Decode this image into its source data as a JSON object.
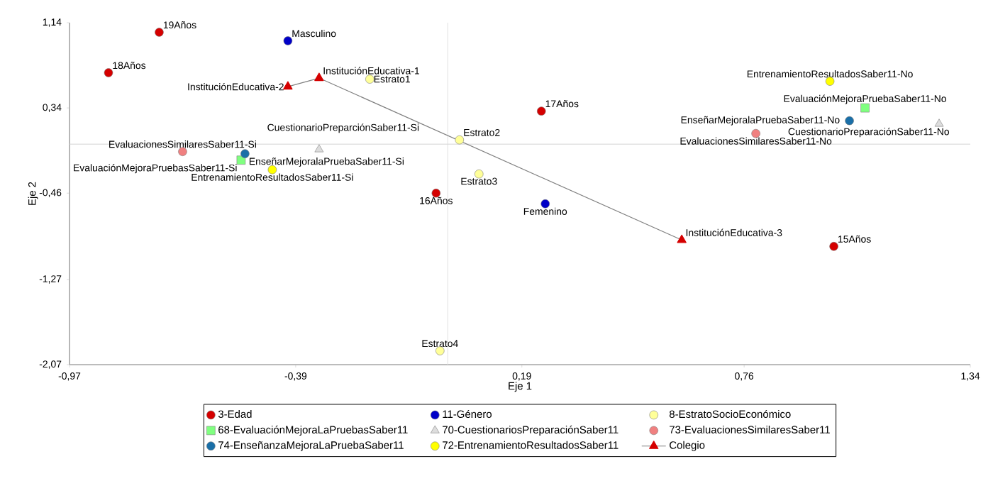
{
  "chart_data": {
    "type": "scatter",
    "xlabel": "Eje 1",
    "ylabel": "Eje 2",
    "xlim": [
      -0.97,
      1.34
    ],
    "ylim": [
      -2.07,
      1.14
    ],
    "xticks": [
      {
        "value": -0.97,
        "label": "-0,97"
      },
      {
        "value": -0.39,
        "label": "-0,39"
      },
      {
        "value": 0.19,
        "label": "0,19"
      },
      {
        "value": 0.76,
        "label": "0,76"
      },
      {
        "value": 1.34,
        "label": "1,34"
      }
    ],
    "yticks": [
      {
        "value": -2.07,
        "label": "-2,07"
      },
      {
        "value": -1.27,
        "label": "-1,27"
      },
      {
        "value": -0.46,
        "label": "-0,46"
      },
      {
        "value": 0.34,
        "label": "0,34"
      },
      {
        "value": 1.14,
        "label": "1,14"
      }
    ],
    "ref_lines": [
      {
        "axis": "x",
        "value": 0,
        "color": "#e0e0e0"
      },
      {
        "axis": "y",
        "value": 0,
        "color": "#d4d4d4"
      }
    ],
    "legend": "bottom",
    "grid": false,
    "series": [
      {
        "name": "3-Edad",
        "marker": "circle",
        "color": "#d50000",
        "x": [
          -0.74,
          -0.87,
          0.24,
          -0.03,
          0.99
        ],
        "values": [
          1.05,
          0.67,
          0.31,
          -0.46,
          -0.96
        ]
      },
      {
        "name": "11-Género",
        "marker": "circle",
        "color": "#0000c8",
        "x": [
          -0.41,
          0.25
        ],
        "values": [
          0.97,
          -0.56
        ]
      },
      {
        "name": "8-EstratoSocioEconómico",
        "marker": "circle",
        "color": "#ffff99",
        "x": [
          -0.2,
          0.03,
          0.08,
          -0.02
        ],
        "values": [
          0.61,
          0.04,
          -0.28,
          -1.94
        ]
      },
      {
        "name": "68-EvaluaciónMejoraLaPruebasSaber11",
        "marker": "square",
        "color": "#80ff80",
        "x": [
          -0.53,
          1.07
        ],
        "values": [
          -0.15,
          0.34
        ]
      },
      {
        "name": "70-CuestionariosPreparaciónSaber11",
        "marker": "triangle",
        "color": "#dddddd",
        "x": [
          -0.33,
          1.26
        ],
        "values": [
          -0.05,
          0.19
        ]
      },
      {
        "name": "73-EvaluacionesSimilaresSaber11",
        "marker": "circle",
        "color": "#f08080",
        "x": [
          -0.68,
          0.79
        ],
        "values": [
          -0.07,
          0.1
        ]
      },
      {
        "name": "74-EnseñanzaMejoraLaPruebaSaber11",
        "marker": "circle",
        "color": "#1a6fa8",
        "x": [
          -0.52,
          1.03
        ],
        "values": [
          -0.09,
          0.22
        ]
      },
      {
        "name": "72-EntrenamientoResultadosSaber11",
        "marker": "circle",
        "color": "#ffff00",
        "x": [
          -0.45,
          0.98
        ],
        "values": [
          -0.24,
          0.59
        ]
      },
      {
        "name": "Colegio",
        "type": "line",
        "marker": "triangle",
        "color": "#d50000",
        "x": [
          -0.41,
          -0.33,
          0.6
        ],
        "values": [
          0.54,
          0.62,
          -0.9
        ]
      }
    ],
    "annotations": [
      {
        "text": "19Años",
        "x": -0.74,
        "y": 1.05
      },
      {
        "text": "18Años",
        "x": -0.87,
        "y": 0.67
      },
      {
        "text": "17Años",
        "x": 0.24,
        "y": 0.31
      },
      {
        "text": "16Años",
        "x": -0.03,
        "y": -0.46
      },
      {
        "text": "15Años",
        "x": 0.99,
        "y": -0.96
      },
      {
        "text": "Masculino",
        "x": -0.41,
        "y": 0.97
      },
      {
        "text": "Femenino",
        "x": 0.25,
        "y": -0.56
      },
      {
        "text": "Estrato1",
        "x": -0.2,
        "y": 0.61
      },
      {
        "text": "Estrato2",
        "x": 0.03,
        "y": 0.04
      },
      {
        "text": "Estrato3",
        "x": 0.08,
        "y": -0.28
      },
      {
        "text": "Estrato4",
        "x": -0.02,
        "y": -1.94
      },
      {
        "text": "EvaluaciónMejoraPruebasSaber11-Si",
        "x": -0.53,
        "y": -0.15
      },
      {
        "text": "EvaluaciónMejoraPruebaSaber11-No",
        "x": 1.07,
        "y": 0.34
      },
      {
        "text": "CuestionarioPreparciónSaber11-Si",
        "x": -0.33,
        "y": -0.05
      },
      {
        "text": "CuestionarioPreparaciónSaber11-No",
        "x": 1.26,
        "y": 0.19
      },
      {
        "text": "EvaluacionesSimilaresSaber11-Si",
        "x": -0.68,
        "y": -0.07
      },
      {
        "text": "EvaluacionesSimilaresSaber11-No",
        "x": 0.79,
        "y": 0.1
      },
      {
        "text": "EnseñarMejoralaPruebaSaber11-Si",
        "x": -0.52,
        "y": -0.09
      },
      {
        "text": "EnseñarMejoralaPruebaSaber11-No",
        "x": 1.03,
        "y": 0.22
      },
      {
        "text": "EntrenamientoResultadosSaber11-Si",
        "x": -0.45,
        "y": -0.24
      },
      {
        "text": "EntrenamientoResultadosSaber11-No",
        "x": 0.98,
        "y": 0.59
      },
      {
        "text": "InstituciónEducativa-1",
        "x": -0.33,
        "y": 0.62
      },
      {
        "text": "InstituciónEducativa-2",
        "x": -0.41,
        "y": 0.54
      },
      {
        "text": "InstituciónEducativa-3",
        "x": 0.6,
        "y": -0.9
      }
    ]
  }
}
